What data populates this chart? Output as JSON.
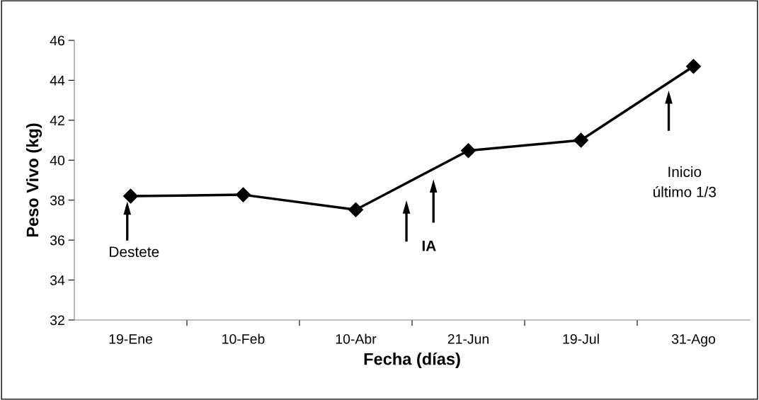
{
  "chart_data": {
    "type": "line",
    "xlabel": "Fecha (días)",
    "ylabel": "Peso Vivo (kg)",
    "categories": [
      "19-Ene",
      "10-Feb",
      "10-Abr",
      "21-Jun",
      "19-Jul",
      "31-Ago"
    ],
    "series": [
      {
        "color": "#000000",
        "values": [
          38.2,
          38.27,
          37.52,
          40.48,
          41.0,
          44.7
        ]
      }
    ],
    "ylim": [
      32,
      46
    ],
    "yticks": [
      32,
      34,
      36,
      38,
      40,
      42,
      44,
      46
    ],
    "marker": "diamond",
    "line_style": "solid",
    "grid": false,
    "legend": false,
    "annotations": [
      "Destete",
      "IA",
      "Inicio\núltimo 1/3"
    ]
  }
}
